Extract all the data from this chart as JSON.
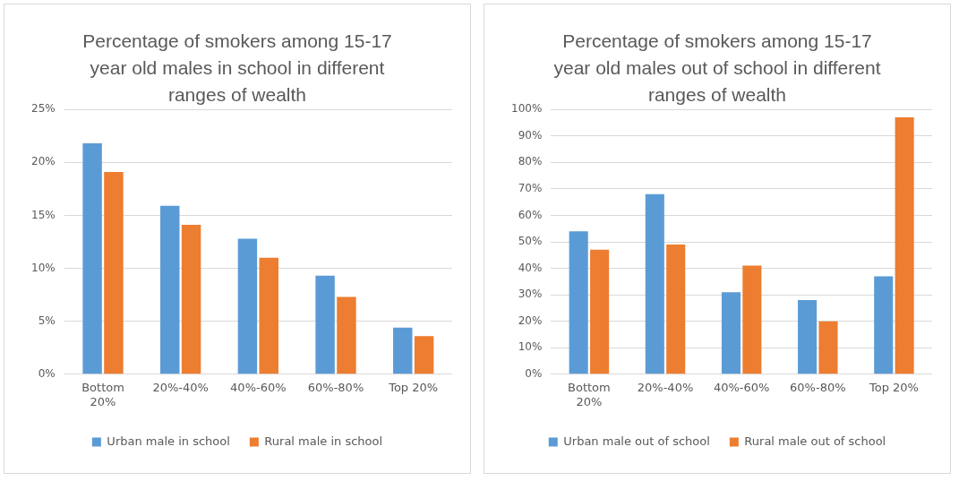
{
  "chart_data": [
    {
      "type": "bar",
      "title": "Percentage of smokers among 15-17 year old males in school in different ranges of wealth",
      "categories": [
        "Bottom 20%",
        "20%-40%",
        "40%-60%",
        "60%-80%",
        "Top 20%"
      ],
      "series": [
        {
          "name": "Urban male in school",
          "color": "#5b9bd5",
          "values": [
            21.8,
            15.9,
            12.8,
            9.3,
            4.4
          ]
        },
        {
          "name": "Rural male in school",
          "color": "#ed7d31",
          "values": [
            19.1,
            14.1,
            11.0,
            7.3,
            3.6
          ]
        }
      ],
      "ylim": [
        0,
        25
      ],
      "yticks": [
        {
          "value": 0,
          "label": "0%"
        },
        {
          "value": 5,
          "label": "5%"
        },
        {
          "value": 10,
          "label": "10%"
        },
        {
          "value": 15,
          "label": "15%"
        },
        {
          "value": 20,
          "label": "20%"
        },
        {
          "value": 25,
          "label": "25%"
        }
      ],
      "grid": "y",
      "legend": "bottom"
    },
    {
      "type": "bar",
      "title": "Percentage of smokers among 15-17 year old males out of school in different ranges of wealth",
      "categories": [
        "Bottom 20%",
        "20%-40%",
        "40%-60%",
        "60%-80%",
        "Top 20%"
      ],
      "series": [
        {
          "name": "Urban male out of school",
          "color": "#5b9bd5",
          "values": [
            54,
            68,
            31,
            28,
            37
          ]
        },
        {
          "name": "Rural male out of school",
          "color": "#ed7d31",
          "values": [
            47,
            49,
            41,
            20,
            97
          ]
        }
      ],
      "ylim": [
        0,
        100
      ],
      "yticks": [
        {
          "value": 0,
          "label": "0%"
        },
        {
          "value": 10,
          "label": "10%"
        },
        {
          "value": 20,
          "label": "20%"
        },
        {
          "value": 30,
          "label": "30%"
        },
        {
          "value": 40,
          "label": "40%"
        },
        {
          "value": 50,
          "label": "50%"
        },
        {
          "value": 60,
          "label": "60%"
        },
        {
          "value": 70,
          "label": "70%"
        },
        {
          "value": 80,
          "label": "80%"
        },
        {
          "value": 90,
          "label": "90%"
        },
        {
          "value": 100,
          "label": "100%"
        }
      ],
      "grid": "y",
      "legend": "bottom"
    }
  ]
}
